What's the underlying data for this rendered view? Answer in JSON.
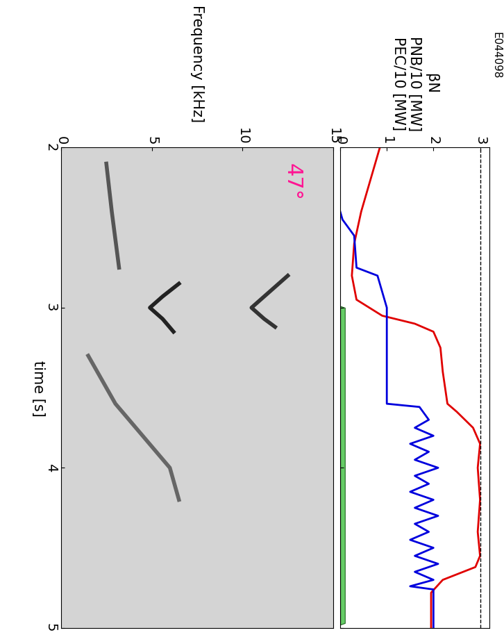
{
  "chart_data": [
    {
      "type": "line",
      "title": "E044098",
      "ylabel": [
        "βN",
        "PNB/10 [MW]",
        "PEC/10 [MW]"
      ],
      "xlim": [
        2,
        5
      ],
      "xticks": [
        2,
        3,
        4,
        5
      ],
      "ylim": [
        0,
        3.2
      ],
      "yticks": [
        0,
        1,
        2,
        3
      ],
      "tick_labels": "y",
      "threshold": 3,
      "series": [
        {
          "color": "#e00000",
          "line_style": "solid",
          "x": [
            2.0,
            2.2,
            2.4,
            2.6,
            2.8,
            2.95,
            3.05,
            3.1,
            3.15,
            3.25,
            3.4,
            3.6,
            3.65,
            3.75,
            3.85,
            4.0,
            4.2,
            4.4,
            4.55,
            4.62,
            4.7,
            4.78,
            4.9,
            5.0
          ],
          "values": [
            0.85,
            0.65,
            0.45,
            0.3,
            0.25,
            0.35,
            0.9,
            1.6,
            2.0,
            2.15,
            2.2,
            2.3,
            2.5,
            2.85,
            3.0,
            2.95,
            3.0,
            2.95,
            3.0,
            2.9,
            2.2,
            1.95,
            1.95,
            1.95
          ]
        },
        {
          "color": "#0000dd",
          "line_style": "solid",
          "x": [
            2.4,
            2.45,
            2.55,
            2.75,
            2.8,
            2.95,
            3.0,
            3.6,
            3.62,
            3.7,
            3.75,
            3.8,
            3.85,
            3.9,
            3.95,
            4.0,
            4.05,
            4.1,
            4.15,
            4.2,
            4.25,
            4.3,
            4.35,
            4.4,
            4.45,
            4.5,
            4.55,
            4.6,
            4.65,
            4.7,
            4.74,
            4.76,
            5.0
          ],
          "values": [
            0,
            0.05,
            0.3,
            0.35,
            0.8,
            0.95,
            1.0,
            1.0,
            1.7,
            1.9,
            1.6,
            2.0,
            1.5,
            1.9,
            1.6,
            2.1,
            1.6,
            1.9,
            1.5,
            2.0,
            1.6,
            2.1,
            1.6,
            1.9,
            1.5,
            2.0,
            1.6,
            2.1,
            1.6,
            2.0,
            1.5,
            2.0,
            2.0
          ]
        },
        {
          "type": "area",
          "color": "#66cc66",
          "x": [
            2.99,
            3.0,
            4.97,
            4.98
          ],
          "values": [
            0,
            0.1,
            0.1,
            0
          ]
        }
      ]
    },
    {
      "type": "spectrogram",
      "xlabel": "time [s]",
      "ylabel": "Frequency [kHz]",
      "xlim": [
        2,
        5
      ],
      "xticks": [
        2,
        3,
        4,
        5
      ],
      "ylim": [
        0,
        15
      ],
      "yticks": [
        0,
        5,
        10,
        15
      ],
      "annotation": {
        "text": "47°",
        "color": "#ff1493"
      },
      "series": [
        {
          "color": "#555555",
          "x": [
            2.1,
            2.4,
            2.75
          ],
          "values": [
            2.5,
            2.8,
            3.2
          ]
        },
        {
          "color": "#222222",
          "x": [
            2.85,
            2.93,
            3.0,
            3.07,
            3.15
          ],
          "values": [
            6.5,
            5.6,
            4.9,
            5.6,
            6.2
          ]
        },
        {
          "color": "#333333",
          "x": [
            2.8,
            2.92,
            3.0,
            3.07,
            3.12
          ],
          "values": [
            12.5,
            11.3,
            10.5,
            11.2,
            11.8
          ]
        },
        {
          "color": "#666666",
          "x": [
            3.3,
            3.6,
            3.8,
            4.0,
            4.2
          ],
          "values": [
            1.5,
            3.0,
            4.5,
            6.0,
            6.5
          ]
        }
      ]
    }
  ]
}
